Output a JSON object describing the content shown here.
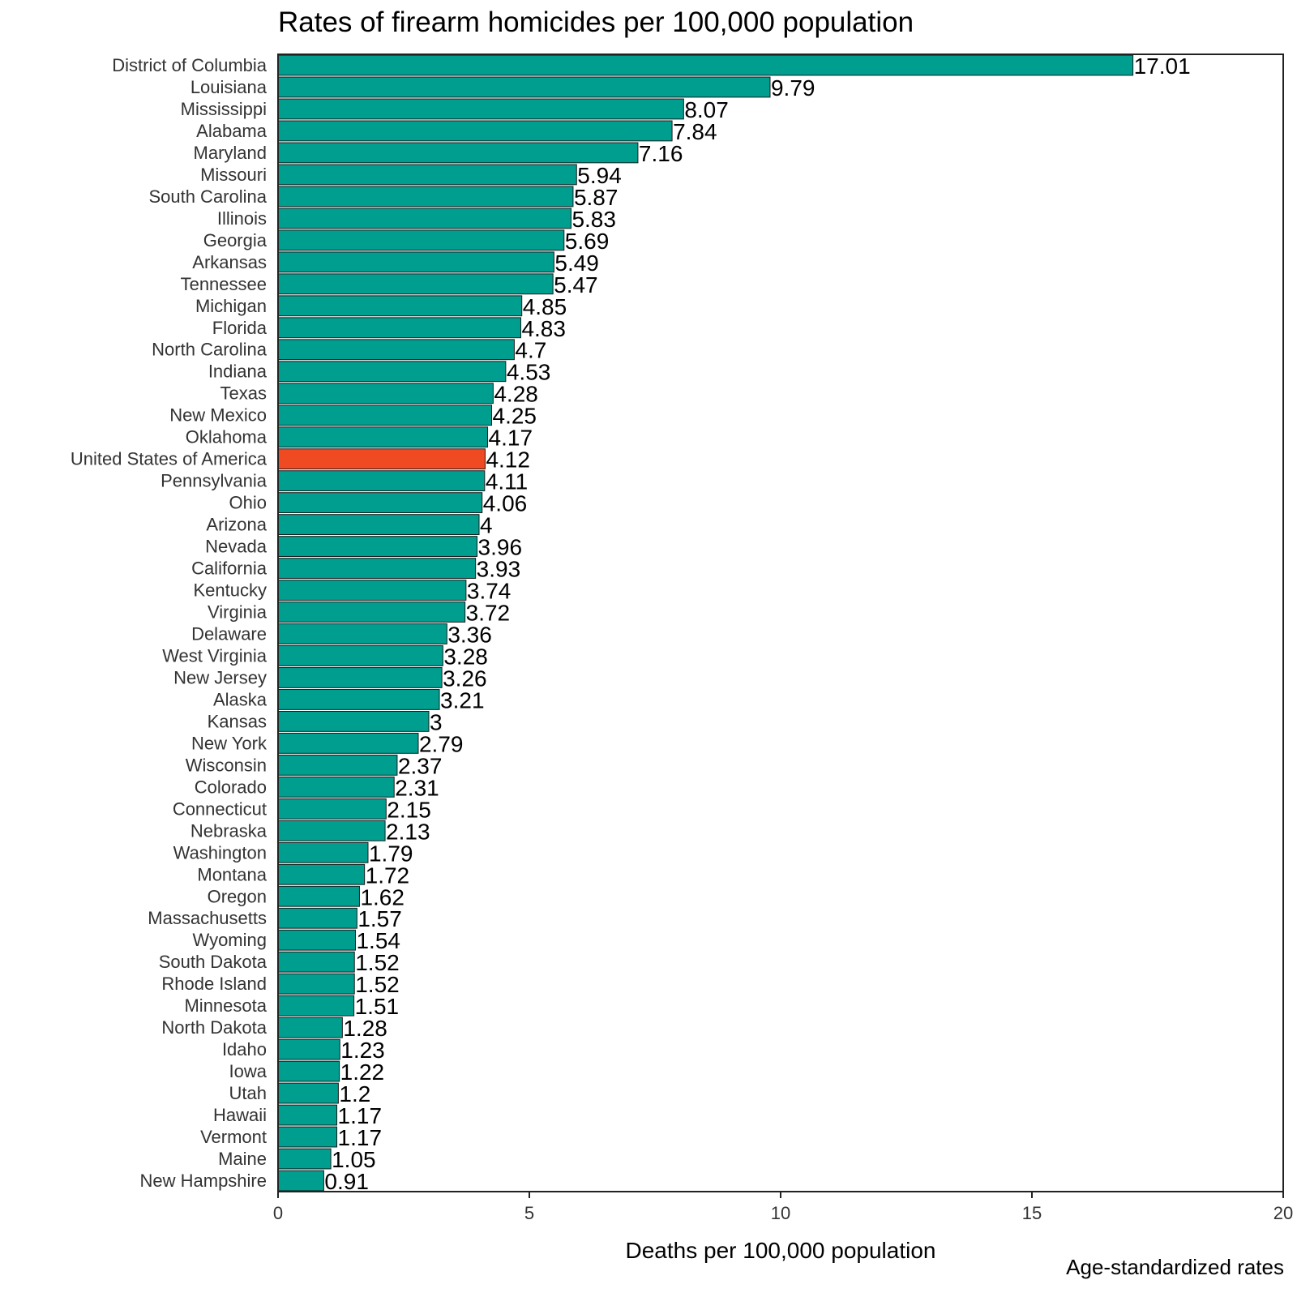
{
  "chart_data": {
    "type": "bar",
    "orientation": "horizontal",
    "title": "Rates of firearm homicides per 100,000 population",
    "xlabel": "Deaths per 100,000 population",
    "ylabel": "",
    "caption": "Age-standardized rates",
    "xlim": [
      0,
      20
    ],
    "xticks": [
      0,
      5,
      10,
      15,
      20
    ],
    "grid": false,
    "colors": {
      "bar": "#009E8F",
      "highlight": "#F04A23"
    },
    "highlight_category": "United States of America",
    "categories": [
      "District of Columbia",
      "Louisiana",
      "Mississippi",
      "Alabama",
      "Maryland",
      "Missouri",
      "South Carolina",
      "Illinois",
      "Georgia",
      "Arkansas",
      "Tennessee",
      "Michigan",
      "Florida",
      "North Carolina",
      "Indiana",
      "Texas",
      "New Mexico",
      "Oklahoma",
      "United States of America",
      "Pennsylvania",
      "Ohio",
      "Arizona",
      "Nevada",
      "California",
      "Kentucky",
      "Virginia",
      "Delaware",
      "West Virginia",
      "New Jersey",
      "Alaska",
      "Kansas",
      "New York",
      "Wisconsin",
      "Colorado",
      "Connecticut",
      "Nebraska",
      "Washington",
      "Montana",
      "Oregon",
      "Massachusetts",
      "Wyoming",
      "South Dakota",
      "Rhode Island",
      "Minnesota",
      "North Dakota",
      "Idaho",
      "Iowa",
      "Utah",
      "Hawaii",
      "Vermont",
      "Maine",
      "New Hampshire"
    ],
    "values": [
      17.01,
      9.79,
      8.07,
      7.84,
      7.16,
      5.94,
      5.87,
      5.83,
      5.69,
      5.49,
      5.47,
      4.85,
      4.83,
      4.7,
      4.53,
      4.28,
      4.25,
      4.17,
      4.12,
      4.11,
      4.06,
      4,
      3.96,
      3.93,
      3.74,
      3.72,
      3.36,
      3.28,
      3.26,
      3.21,
      3,
      2.79,
      2.37,
      2.31,
      2.15,
      2.13,
      1.79,
      1.72,
      1.62,
      1.57,
      1.54,
      1.52,
      1.52,
      1.51,
      1.28,
      1.23,
      1.22,
      1.2,
      1.17,
      1.17,
      1.05,
      0.91
    ]
  }
}
